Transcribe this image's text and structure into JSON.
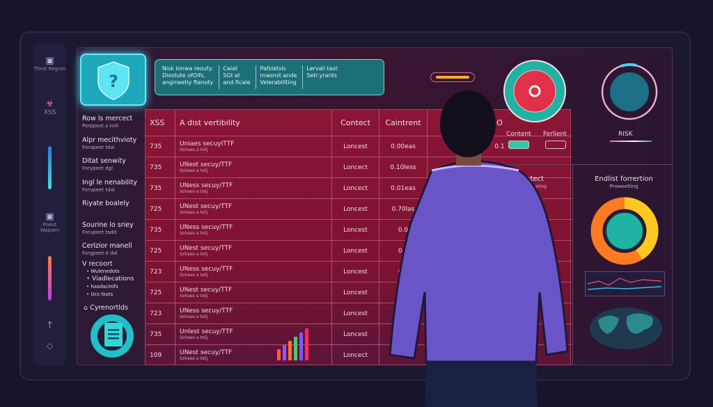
{
  "sidebar": {
    "items": [
      {
        "icon": "threat-report-icon",
        "label": "Thrat Regnm"
      },
      {
        "icon": "biohazard-icon",
        "label": "XSS"
      },
      {
        "icon": "report-icon",
        "label": "Poeut Wapsen"
      },
      {
        "icon": "arrow-up-icon",
        "label": ""
      },
      {
        "icon": "diamond-icon",
        "label": ""
      }
    ]
  },
  "info_box": {
    "cols": [
      [
        "Nisk lonwa reouty.",
        "Diostute ofOifs,",
        "angineetiy ftenoty"
      ],
      [
        "Caiat",
        "SOI at",
        "and ficale"
      ],
      [
        "Pafslatsls",
        "rnaonst ande",
        "Velerabiliting"
      ],
      [
        "Lervali tast",
        "Setr.yrants"
      ]
    ]
  },
  "row_labels": [
    {
      "title": "Row ls mercect",
      "sub": "Porppezt a tolli"
    },
    {
      "title": "Alpr mecithvioty",
      "sub": "Forapeet tdal"
    },
    {
      "title": "Ditat senwity",
      "sub": "Forypeet dgl"
    },
    {
      "title": "Ingl le nenability",
      "sub": "Forupeet tdal"
    },
    {
      "title": "Riyate boalely",
      "sub": ""
    },
    {
      "title": "Sourine lo sriey",
      "sub": "Forupeet tadd"
    },
    {
      "title": "Cerlzior manell",
      "sub": "Forgpeet d dal"
    }
  ],
  "list": {
    "title": "V recoort",
    "items": [
      "Wulenedots",
      "Viadlecations",
      "hasdacinifs",
      "Ucs louts"
    ],
    "footer": "Cyrenortlds"
  },
  "table": {
    "headers": [
      "XSS",
      "A dist vertibility",
      "Contect",
      "Caintrent",
      "O"
    ],
    "rows": [
      {
        "id": "735",
        "desc": "Uniaes secuyITTF",
        "sub": "Sohaes a tolij",
        "c": "Loncest",
        "v": "0.00eas",
        "o": "0.1"
      },
      {
        "id": "735",
        "desc": "UNest secuy/TTF",
        "sub": "Sohaes a tolij",
        "c": "Loncect",
        "v": "0.10less",
        "o": "00."
      },
      {
        "id": "735",
        "desc": "UNess secuy/TTF",
        "sub": "Sohaes a tolij",
        "c": "Loncect",
        "v": "0.01eas",
        "o": "0."
      },
      {
        "id": "725",
        "desc": "UNest secuy/TTF",
        "sub": "Sohaes a tolij",
        "c": "Loncest",
        "v": "0.70las",
        "o": ""
      },
      {
        "id": "735",
        "desc": "UNess secuy/TTF",
        "sub": "Sohaes a tolij",
        "c": "Loncest",
        "v": "0.0",
        "o": ""
      },
      {
        "id": "725",
        "desc": "UNest secuy/TTF",
        "sub": "Sohaes a tolij",
        "c": "Loncest",
        "v": "0.0",
        "o": ""
      },
      {
        "id": "723",
        "desc": "UNess secuy/TTF",
        "sub": "Sohaes a tolij",
        "c": "Loncest",
        "v": "0.1",
        "o": ""
      },
      {
        "id": "725",
        "desc": "UNest secuy/TTF",
        "sub": "Sohaes a tolij",
        "c": "Loncest",
        "v": "0",
        "o": ""
      },
      {
        "id": "723",
        "desc": "UNess secuy/TTF",
        "sub": "Sohaes a tolij",
        "c": "Loncest",
        "v": "",
        "o": ""
      },
      {
        "id": "735",
        "desc": "Unlest secuy/TTF",
        "sub": "Sohaes a tolij",
        "c": "Loncest",
        "v": "",
        "o": ""
      },
      {
        "id": "109",
        "desc": "UNest secuy/TTF",
        "sub": "Sohaes a tolij",
        "c": "Loncect",
        "v": "",
        "o": ""
      }
    ]
  },
  "gauges": {
    "content_label": "Content",
    "ferlient_label": "Ferlient",
    "risk_label": "RISK"
  },
  "lower_panel": {
    "contect_title": "Contect",
    "contect_sub": "Eww spaling",
    "right_title": "Endlist forrertion",
    "right_sub": "Proweelting"
  },
  "colors": {
    "background": "#17142c",
    "table": "#8a1534",
    "teal": "#1fa7bb",
    "accent_red": "#e0304a",
    "jacket": "#6a55c8"
  }
}
